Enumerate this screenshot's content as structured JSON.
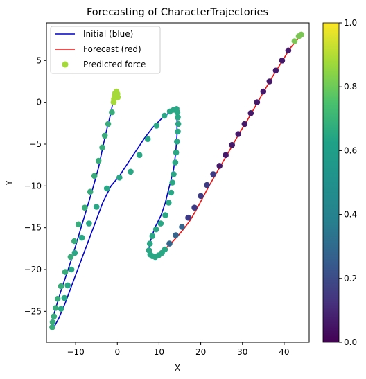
{
  "chart_data": {
    "type": "line",
    "title": "Forecasting of CharacterTrajectories",
    "xlabel": "X",
    "ylabel": "Y",
    "xlim": [
      -17,
      46
    ],
    "ylim": [
      -28.7,
      9.5
    ],
    "xticks": [
      -10,
      0,
      10,
      20,
      30,
      40
    ],
    "yticks": [
      5,
      0,
      -5,
      -10,
      -15,
      -20,
      -25
    ],
    "grid": false,
    "legend": {
      "placement": "top-left",
      "entries": [
        {
          "label": "Initial (blue)",
          "marker": "line",
          "color": "#0000cc"
        },
        {
          "label": "Forecast (red)",
          "marker": "line",
          "color": "#ee1111"
        },
        {
          "label": "Predicted force",
          "marker": "dot",
          "color": "#a5d93a"
        }
      ]
    },
    "colorbar": {
      "colormap": "viridis",
      "range": [
        0,
        1
      ],
      "ticks": [
        "0.0",
        "0.2",
        "0.4",
        "0.6",
        "0.8",
        "1.0"
      ]
    },
    "series": [
      {
        "name": "Initial (blue)",
        "color": "#0000cc",
        "points": [
          [
            0,
            0.3
          ],
          [
            0,
            1
          ],
          [
            -0.3,
            1.2
          ],
          [
            -0.8,
            0.8
          ],
          [
            -1.5,
            -1.2
          ],
          [
            -2.5,
            -3.2
          ],
          [
            -3.5,
            -5.4
          ],
          [
            -4.5,
            -7.8
          ],
          [
            -6,
            -10.5
          ],
          [
            -7.5,
            -13
          ],
          [
            -9,
            -15.5
          ],
          [
            -10.5,
            -18
          ],
          [
            -12,
            -20.3
          ],
          [
            -13.5,
            -22.5
          ],
          [
            -15,
            -25
          ],
          [
            -15.8,
            -26.6
          ],
          [
            -15.3,
            -27
          ],
          [
            -14,
            -25.8
          ],
          [
            -12.5,
            -24
          ],
          [
            -11,
            -22
          ],
          [
            -9.5,
            -20
          ],
          [
            -8,
            -18
          ],
          [
            -6.5,
            -16
          ],
          [
            -5,
            -14
          ],
          [
            -3.5,
            -12
          ],
          [
            -1.5,
            -10
          ],
          [
            0.5,
            -8.8
          ],
          [
            2.5,
            -7.3
          ],
          [
            4.5,
            -5.8
          ],
          [
            6.5,
            -4.3
          ],
          [
            8.5,
            -3
          ],
          [
            10.5,
            -2
          ],
          [
            12.5,
            -1.2
          ],
          [
            14,
            -0.9
          ],
          [
            14.3,
            -2
          ],
          [
            14.3,
            -4
          ],
          [
            14,
            -6
          ],
          [
            13.5,
            -8
          ],
          [
            12.5,
            -10
          ],
          [
            11.5,
            -12
          ],
          [
            10.5,
            -13.5
          ],
          [
            9,
            -15
          ],
          [
            8,
            -16.5
          ],
          [
            7.6,
            -17.5
          ],
          [
            8,
            -18.2
          ],
          [
            9.2,
            -18.4
          ],
          [
            10.3,
            -18
          ]
        ]
      },
      {
        "name": "Forecast (red)",
        "color": "#ee1111",
        "points": [
          [
            10.3,
            -18
          ],
          [
            11.5,
            -17.5
          ],
          [
            13,
            -16.8
          ],
          [
            14.5,
            -16
          ],
          [
            16,
            -15.1
          ],
          [
            17.5,
            -14.1
          ],
          [
            19,
            -12.8
          ],
          [
            20.5,
            -11.4
          ],
          [
            22,
            -10
          ],
          [
            23.5,
            -8.7
          ],
          [
            25,
            -7.4
          ],
          [
            26.5,
            -6.1
          ],
          [
            28,
            -4.8
          ],
          [
            29.5,
            -3.5
          ],
          [
            31,
            -2.3
          ],
          [
            32.5,
            -1
          ],
          [
            34,
            0.3
          ],
          [
            35.5,
            1.6
          ],
          [
            37,
            2.9
          ],
          [
            38.5,
            4.1
          ],
          [
            40,
            5.3
          ],
          [
            41.5,
            6.5
          ],
          [
            43,
            7.4
          ],
          [
            44.2,
            8.1
          ]
        ]
      }
    ],
    "predicted_force": {
      "name": "Predicted force",
      "groups": [
        {
          "color": "#a5d93a",
          "points": [
            [
              0.1,
              0.6
            ],
            [
              0,
              1
            ],
            [
              -0.2,
              1.3
            ],
            [
              -0.5,
              1.1
            ],
            [
              -0.6,
              0.8
            ],
            [
              -0.8,
              0.4
            ],
            [
              -0.9,
              0
            ]
          ]
        },
        {
          "color": "#3aab7a",
          "points": [
            [
              -1.3,
              -1.2
            ],
            [
              -2.2,
              -2.6
            ],
            [
              -3,
              -4
            ],
            [
              -3.6,
              -5.4
            ],
            [
              -4.5,
              -7
            ],
            [
              -5.5,
              -8.8
            ],
            [
              -6.5,
              -10.7
            ],
            [
              -7.8,
              -12.6
            ],
            [
              -9.3,
              -14.6
            ],
            [
              -10.3,
              -16.6
            ],
            [
              -11.2,
              -18.5
            ],
            [
              -12.5,
              -20.3
            ],
            [
              -13.5,
              -22
            ],
            [
              -14.3,
              -23.5
            ],
            [
              -14.8,
              -24.6
            ],
            [
              -15.2,
              -25.6
            ],
            [
              -15.5,
              -26.3
            ],
            [
              -15.6,
              -26.9
            ]
          ]
        },
        {
          "color": "#2aa784",
          "points": [
            [
              -13.5,
              -24.7
            ],
            [
              -12.7,
              -23.4
            ],
            [
              -11.9,
              -21.9
            ],
            [
              -11,
              -20
            ],
            [
              -10.2,
              -18
            ],
            [
              -8.5,
              -16.2
            ],
            [
              -6.8,
              -14.5
            ],
            [
              -5,
              -12.5
            ],
            [
              -2.5,
              -10.3
            ],
            [
              0.5,
              -9
            ],
            [
              3.2,
              -8.3
            ],
            [
              5.3,
              -6.3
            ],
            [
              7.3,
              -4.4
            ],
            [
              9.4,
              -2.8
            ],
            [
              11.3,
              -1.6
            ],
            [
              12.6,
              -1.1
            ],
            [
              13.5,
              -0.9
            ],
            [
              14.2,
              -0.8
            ],
            [
              14.4,
              -1.2
            ],
            [
              14.5,
              -1.8
            ],
            [
              14.6,
              -2.6
            ],
            [
              14.5,
              -3.5
            ],
            [
              14.3,
              -4.7
            ],
            [
              14.1,
              -6
            ],
            [
              13.9,
              -7.2
            ],
            [
              13.5,
              -8.6
            ],
            [
              13.2,
              -9.6
            ],
            [
              12.9,
              -10.8
            ],
            [
              12.3,
              -12
            ],
            [
              11.5,
              -13.5
            ],
            [
              10.4,
              -14.5
            ],
            [
              9.3,
              -15.2
            ],
            [
              8.4,
              -16
            ],
            [
              7.8,
              -16.9
            ],
            [
              7.6,
              -17.7
            ],
            [
              7.9,
              -18.2
            ],
            [
              8.4,
              -18.4
            ],
            [
              9.1,
              -18.5
            ],
            [
              9.9,
              -18.3
            ],
            [
              10.7,
              -18
            ],
            [
              11.4,
              -17.6
            ]
          ]
        },
        {
          "color": "#35658c",
          "points": [
            [
              12.5,
              -16.9
            ],
            [
              14,
              -15.9
            ],
            [
              15.5,
              -14.9
            ]
          ]
        },
        {
          "color": "#3d3a85",
          "points": [
            [
              17,
              -13.8
            ],
            [
              18.5,
              -12.6
            ],
            [
              20,
              -11.2
            ],
            [
              21.5,
              -9.9
            ],
            [
              23,
              -8.6
            ]
          ]
        },
        {
          "color": "#46186a",
          "points": [
            [
              24.5,
              -7.6
            ],
            [
              26,
              -6.3
            ],
            [
              27.5,
              -5.1
            ],
            [
              29,
              -3.8
            ],
            [
              30.5,
              -2.6
            ],
            [
              32,
              -1.3
            ],
            [
              33.5,
              0
            ],
            [
              35,
              1.3
            ],
            [
              36.5,
              2.5
            ],
            [
              38,
              3.8
            ],
            [
              39.5,
              5
            ],
            [
              41,
              6.2
            ]
          ]
        },
        {
          "color": "#7ac553",
          "points": [
            [
              42.5,
              7.3
            ],
            [
              43.5,
              7.9
            ],
            [
              44.1,
              8.1
            ]
          ]
        }
      ]
    }
  }
}
